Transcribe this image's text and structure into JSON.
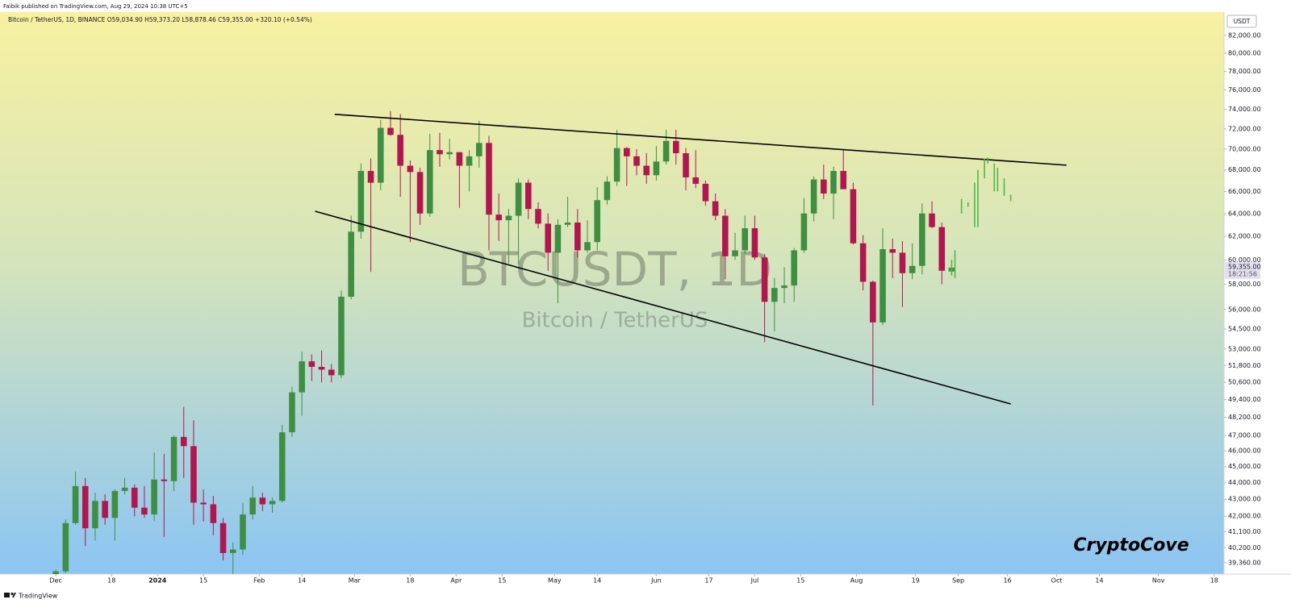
{
  "chart_data": {
    "type": "candlestick",
    "header": "Faibik published on TradingView.com, Aug 29, 2024 10:38 UTC+5",
    "legend": "Bitcoin / TetherUS, 1D, BINANCE  O59,034.90  H59,373.20  L58,878.46  C59,355.00  +320.10 (+0.54%)",
    "symbol_watermark": "BTCUSDT, 1D",
    "description_watermark": "Bitcoin / TetherUS",
    "currency": "USDT",
    "signature": "CryptoCove",
    "footer": "TradingView",
    "log_scale": true,
    "grid": false,
    "up_color": "#3f8f43",
    "down_color": "#b3164e",
    "xlim": [
      "2023-11-14",
      "2024-11-21"
    ],
    "ylim": [
      38750,
      84700
    ],
    "x": [
      "2023-11-30",
      "2023-12-03",
      "2023-12-06",
      "2023-12-09",
      "2023-12-12",
      "2023-12-15",
      "2023-12-18",
      "2023-12-21",
      "2023-12-24",
      "2023-12-27",
      "2023-12-30",
      "2024-01-02",
      "2024-01-05",
      "2024-01-08",
      "2024-01-11",
      "2024-01-14",
      "2024-01-17",
      "2024-01-20",
      "2024-01-23",
      "2024-01-26",
      "2024-01-29",
      "2024-02-01",
      "2024-02-04",
      "2024-02-07",
      "2024-02-10",
      "2024-02-13",
      "2024-02-16",
      "2024-02-19",
      "2024-02-22",
      "2024-02-25",
      "2024-02-28",
      "2024-03-02",
      "2024-03-05",
      "2024-03-08",
      "2024-03-11",
      "2024-03-14",
      "2024-03-17",
      "2024-03-20",
      "2024-03-23",
      "2024-03-26",
      "2024-03-29",
      "2024-04-01",
      "2024-04-04",
      "2024-04-07",
      "2024-04-10",
      "2024-04-13",
      "2024-04-16",
      "2024-04-19",
      "2024-04-22",
      "2024-04-25",
      "2024-04-28",
      "2024-05-01",
      "2024-05-04",
      "2024-05-07",
      "2024-05-10",
      "2024-05-13",
      "2024-05-16",
      "2024-05-19",
      "2024-05-22",
      "2024-05-25",
      "2024-05-28",
      "2024-05-31",
      "2024-06-03",
      "2024-06-06",
      "2024-06-09",
      "2024-06-12",
      "2024-06-15",
      "2024-06-18",
      "2024-06-21",
      "2024-06-24",
      "2024-06-27",
      "2024-06-30",
      "2024-07-03",
      "2024-07-06",
      "2024-07-09",
      "2024-07-12",
      "2024-07-15",
      "2024-07-18",
      "2024-07-21",
      "2024-07-24",
      "2024-07-27",
      "2024-07-30",
      "2024-08-02",
      "2024-08-05",
      "2024-08-08",
      "2024-08-11",
      "2024-08-14",
      "2024-08-17",
      "2024-08-20",
      "2024-08-23",
      "2024-08-26",
      "2024-08-29"
    ],
    "open": [
      38200,
      38900,
      41600,
      43800,
      41300,
      42900,
      41900,
      43500,
      43700,
      42500,
      42100,
      44200,
      44100,
      46900,
      46300,
      42800,
      42700,
      41600,
      39900,
      40100,
      42100,
      43100,
      42700,
      42900,
      47200,
      49900,
      52100,
      51700,
      51500,
      51100,
      57000,
      62400,
      67900,
      66800,
      72100,
      71400,
      68400,
      67800,
      64000,
      69900,
      69500,
      69700,
      68400,
      69300,
      70600,
      63900,
      63400,
      63800,
      66800,
      64400,
      63100,
      60600,
      63000,
      63200,
      60800,
      61500,
      65200,
      66900,
      70100,
      69300,
      68400,
      67500,
      68800,
      70800,
      69600,
      67300,
      66700,
      65100,
      63800,
      60300,
      60800,
      62700,
      60200,
      56600,
      57700,
      57900,
      60800,
      64000,
      67100,
      65800,
      67900,
      66200,
      61400,
      58200,
      55000,
      60900,
      60600,
      58900,
      59500,
      64000,
      62800,
      59034.9
    ],
    "high": [
      39000,
      41800,
      44700,
      44300,
      43400,
      43300,
      43600,
      44300,
      43900,
      43800,
      45900,
      45800,
      47000,
      48900,
      48000,
      43600,
      43200,
      41900,
      40500,
      42800,
      43800,
      43400,
      43100,
      47700,
      50300,
      52800,
      52600,
      52900,
      51900,
      57500,
      63800,
      68600,
      69100,
      72900,
      73800,
      73500,
      68900,
      68200,
      71500,
      71600,
      71000,
      69700,
      69900,
      72800,
      71300,
      65800,
      64400,
      67200,
      67100,
      65000,
      64000,
      63500,
      65500,
      64400,
      63400,
      66400,
      67400,
      71900,
      70200,
      70000,
      69600,
      70300,
      71900,
      71900,
      70100,
      69900,
      67000,
      65800,
      64400,
      62300,
      63800,
      63800,
      60500,
      58500,
      59400,
      61000,
      65400,
      67400,
      68500,
      68300,
      70000,
      66800,
      62100,
      58300,
      62700,
      61800,
      61600,
      61400,
      64900,
      65100,
      63200,
      59373.2
    ],
    "low": [
      37800,
      38800,
      41500,
      40300,
      40600,
      41500,
      40600,
      43300,
      42000,
      41900,
      41700,
      40800,
      43500,
      44300,
      41500,
      41700,
      40900,
      39500,
      38500,
      39800,
      41800,
      42300,
      42200,
      42800,
      46900,
      48300,
      50700,
      50600,
      50600,
      50900,
      56800,
      61800,
      59000,
      66100,
      71300,
      65500,
      61500,
      63000,
      63700,
      68300,
      69000,
      64500,
      66000,
      68200,
      60800,
      61600,
      59700,
      59600,
      63500,
      62700,
      59100,
      56500,
      62800,
      60200,
      60600,
      60800,
      64800,
      66500,
      66500,
      67500,
      66700,
      67000,
      68500,
      68500,
      66100,
      66300,
      64700,
      63400,
      58400,
      60000,
      60500,
      60000,
      53500,
      54300,
      56500,
      56600,
      60600,
      63300,
      65300,
      63500,
      66600,
      61300,
      57500,
      49000,
      54800,
      58500,
      56200,
      58400,
      58800,
      62700,
      58000,
      58878.46
    ],
    "close": [
      38900,
      41600,
      43800,
      41300,
      42900,
      41900,
      43500,
      43700,
      42500,
      42100,
      44200,
      44100,
      46900,
      46300,
      42800,
      42700,
      41600,
      39900,
      40100,
      42100,
      43100,
      42700,
      42900,
      47200,
      49900,
      52100,
      51700,
      51500,
      51100,
      57000,
      62400,
      67900,
      66800,
      72100,
      71400,
      68400,
      67800,
      64000,
      69900,
      69500,
      69700,
      68400,
      69300,
      70600,
      63900,
      63400,
      63800,
      66800,
      64400,
      63100,
      60600,
      63000,
      63200,
      60800,
      61500,
      65200,
      66900,
      70100,
      69300,
      68400,
      67500,
      68800,
      70800,
      69600,
      67300,
      66700,
      65100,
      63800,
      60300,
      60800,
      62700,
      60200,
      56600,
      57700,
      57900,
      60800,
      64000,
      67100,
      65800,
      67900,
      66200,
      61400,
      58200,
      55000,
      60900,
      60600,
      58900,
      59500,
      64000,
      62800,
      59100,
      59355
    ],
    "yticks": [
      {
        "value": 82000,
        "label": "82,000.00"
      },
      {
        "value": 80000,
        "label": "80,000.00"
      },
      {
        "value": 78000,
        "label": "78,000.00"
      },
      {
        "value": 76000,
        "label": "76,000.00"
      },
      {
        "value": 74000,
        "label": "74,000.00"
      },
      {
        "value": 72000,
        "label": "72,000.00"
      },
      {
        "value": 70000,
        "label": "70,000.00"
      },
      {
        "value": 68000,
        "label": "68,000.00"
      },
      {
        "value": 66000,
        "label": "66,000.00"
      },
      {
        "value": 64000,
        "label": "64,000.00"
      },
      {
        "value": 62000,
        "label": "62,000.00"
      },
      {
        "value": 60000,
        "label": "60,000.00"
      },
      {
        "value": 58000,
        "label": "58,000.00"
      },
      {
        "value": 56000,
        "label": "56,000.00"
      },
      {
        "value": 54500,
        "label": "54,500.00"
      },
      {
        "value": 53000,
        "label": "53,000.00"
      },
      {
        "value": 51800,
        "label": "51,800.00"
      },
      {
        "value": 50600,
        "label": "50,600.00"
      },
      {
        "value": 49400,
        "label": "49,400.00"
      },
      {
        "value": 48200,
        "label": "48,200.00"
      },
      {
        "value": 47000,
        "label": "47,000.00"
      },
      {
        "value": 46000,
        "label": "46,000.00"
      },
      {
        "value": 45000,
        "label": "45,000.00"
      },
      {
        "value": 44000,
        "label": "44,000.00"
      },
      {
        "value": 43000,
        "label": "43,000.00"
      },
      {
        "value": 42000,
        "label": "42,000.00"
      },
      {
        "value": 41100,
        "label": "41,100.00"
      },
      {
        "value": 40200,
        "label": "40,200.00"
      },
      {
        "value": 39360,
        "label": "39,360.00"
      }
    ],
    "xticks": [
      {
        "value": "2023-12-01",
        "label": "Dec"
      },
      {
        "value": "2023-12-18",
        "label": "18"
      },
      {
        "value": "2024-01-01",
        "label": "2024"
      },
      {
        "value": "2024-01-15",
        "label": "15"
      },
      {
        "value": "2024-02-01",
        "label": "Feb"
      },
      {
        "value": "2024-02-14",
        "label": "14"
      },
      {
        "value": "2024-03-01",
        "label": "Mar"
      },
      {
        "value": "2024-03-18",
        "label": "18"
      },
      {
        "value": "2024-04-01",
        "label": "Apr"
      },
      {
        "value": "2024-04-15",
        "label": "15"
      },
      {
        "value": "2024-05-01",
        "label": "May"
      },
      {
        "value": "2024-05-14",
        "label": "14"
      },
      {
        "value": "2024-06-01",
        "label": "Jun"
      },
      {
        "value": "2024-06-17",
        "label": "17"
      },
      {
        "value": "2024-07-01",
        "label": "Jul"
      },
      {
        "value": "2024-07-15",
        "label": "15"
      },
      {
        "value": "2024-08-01",
        "label": "Aug"
      },
      {
        "value": "2024-08-19",
        "label": "19"
      },
      {
        "value": "2024-09-01",
        "label": "Sep"
      },
      {
        "value": "2024-09-16",
        "label": "16"
      },
      {
        "value": "2024-10-01",
        "label": "Oct"
      },
      {
        "value": "2024-10-14",
        "label": "14"
      },
      {
        "value": "2024-11-01",
        "label": "Nov"
      },
      {
        "value": "2024-11-18",
        "label": "18"
      }
    ],
    "trendlines": [
      {
        "color": "#000000",
        "x": [
          "2024-02-24",
          "2024-10-04"
        ],
        "y": [
          73470,
          68450
        ]
      },
      {
        "color": "#000000",
        "x": [
          "2024-02-18",
          "2024-09-17"
        ],
        "y": [
          64200,
          49100
        ]
      }
    ],
    "projection": {
      "color": "#4fb848",
      "x": [
        "2024-08-30",
        "2024-08-31",
        "2024-09-02",
        "2024-09-04",
        "2024-09-06",
        "2024-09-07",
        "2024-09-09",
        "2024-09-10",
        "2024-09-12",
        "2024-09-13",
        "2024-09-15",
        "2024-09-17"
      ],
      "low": [
        58700,
        58500,
        64000,
        64600,
        62800,
        62800,
        67200,
        68600,
        66000,
        66000,
        65600,
        65100
      ],
      "high": [
        60000,
        60800,
        65300,
        65000,
        66800,
        68000,
        69100,
        69200,
        68600,
        68200,
        67200,
        65700
      ]
    },
    "last_price": {
      "value": 59355,
      "label": "59,355.00"
    },
    "countdown": "18:21:56"
  }
}
